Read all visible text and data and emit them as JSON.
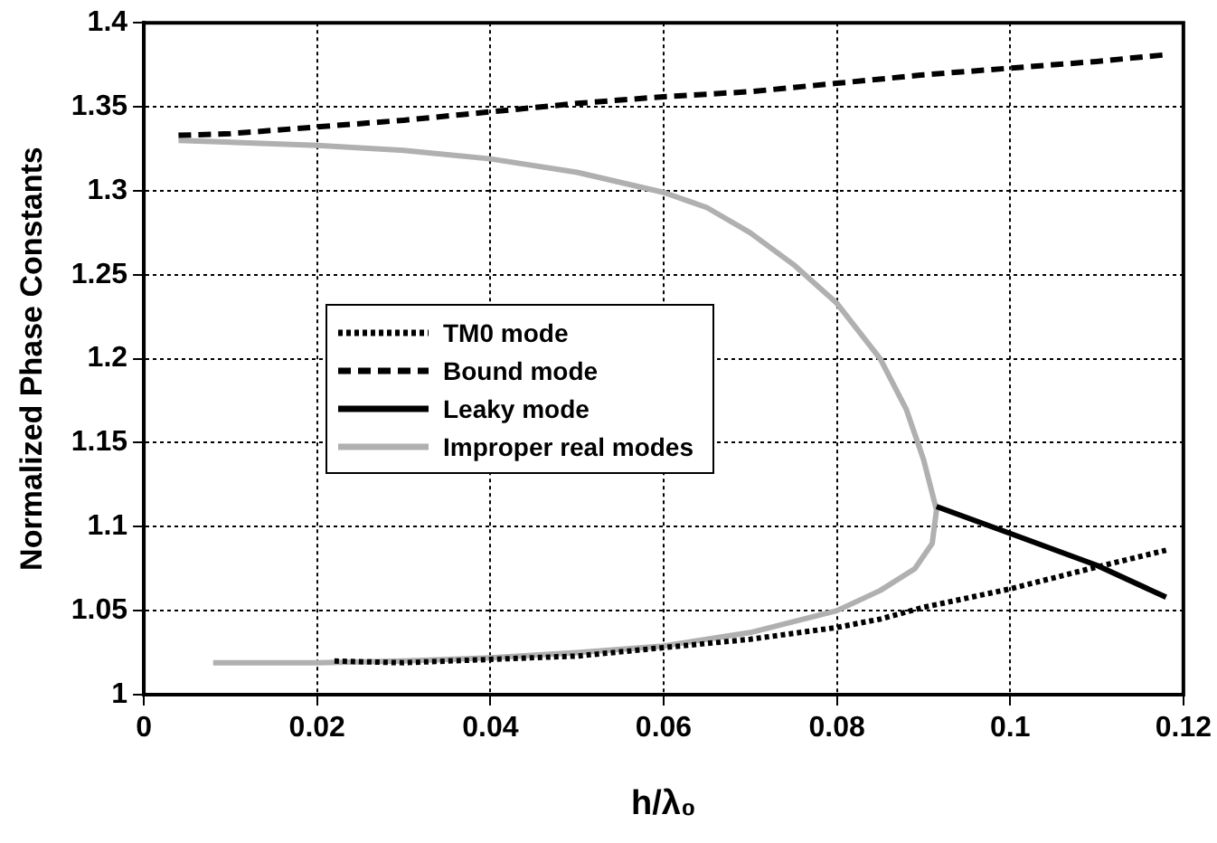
{
  "chart_data": {
    "type": "line",
    "xlabel": "h/λ₀",
    "ylabel": "Normalized Phase Constants",
    "xlim": [
      0,
      0.12
    ],
    "xticks": [
      0,
      0.02,
      0.04,
      0.06,
      0.08,
      0.1,
      0.12
    ],
    "ylim": [
      1,
      1.4
    ],
    "yticks": [
      1,
      1.05,
      1.1,
      1.15,
      1.2,
      1.25,
      1.3,
      1.35,
      1.4
    ],
    "grid": true,
    "legend": "left",
    "marker": "none",
    "series": [
      {
        "name": "TM0 mode",
        "color": "#000000",
        "line_style": "dotted",
        "x": [
          0.022,
          0.03,
          0.04,
          0.05,
          0.06,
          0.07,
          0.08,
          0.085,
          0.09,
          0.1,
          0.11,
          0.118
        ],
        "values": [
          1.02,
          1.019,
          1.021,
          1.023,
          1.028,
          1.033,
          1.04,
          1.045,
          1.052,
          1.063,
          1.076,
          1.086
        ]
      },
      {
        "name": "Bound mode",
        "color": "#000000",
        "line_style": "dashed",
        "x": [
          0.004,
          0.01,
          0.02,
          0.03,
          0.04,
          0.05,
          0.06,
          0.07,
          0.08,
          0.09,
          0.1,
          0.11,
          0.118
        ],
        "values": [
          1.333,
          1.334,
          1.338,
          1.342,
          1.347,
          1.352,
          1.356,
          1.359,
          1.364,
          1.369,
          1.373,
          1.377,
          1.381
        ]
      },
      {
        "name": "Leaky mode",
        "color": "#000000",
        "line_style": "solid",
        "x": [
          0.0915,
          0.1,
          0.11,
          0.118
        ],
        "values": [
          1.112,
          1.096,
          1.077,
          1.058
        ]
      },
      {
        "name": "Improper real modes",
        "color": "#b0b0b0",
        "line_style": "solid",
        "x": [
          0.004,
          0.02,
          0.03,
          0.04,
          0.05,
          0.06,
          0.065,
          0.07,
          0.075,
          0.08,
          0.085,
          0.088,
          0.09,
          0.0915,
          0.091,
          0.089,
          0.085,
          0.08,
          0.07,
          0.06,
          0.05,
          0.04,
          0.03,
          0.02,
          0.008
        ],
        "values": [
          1.33,
          1.327,
          1.324,
          1.319,
          1.311,
          1.299,
          1.29,
          1.275,
          1.256,
          1.233,
          1.2,
          1.17,
          1.14,
          1.11,
          1.09,
          1.075,
          1.062,
          1.05,
          1.037,
          1.029,
          1.025,
          1.022,
          1.02,
          1.019,
          1.019
        ]
      }
    ]
  }
}
